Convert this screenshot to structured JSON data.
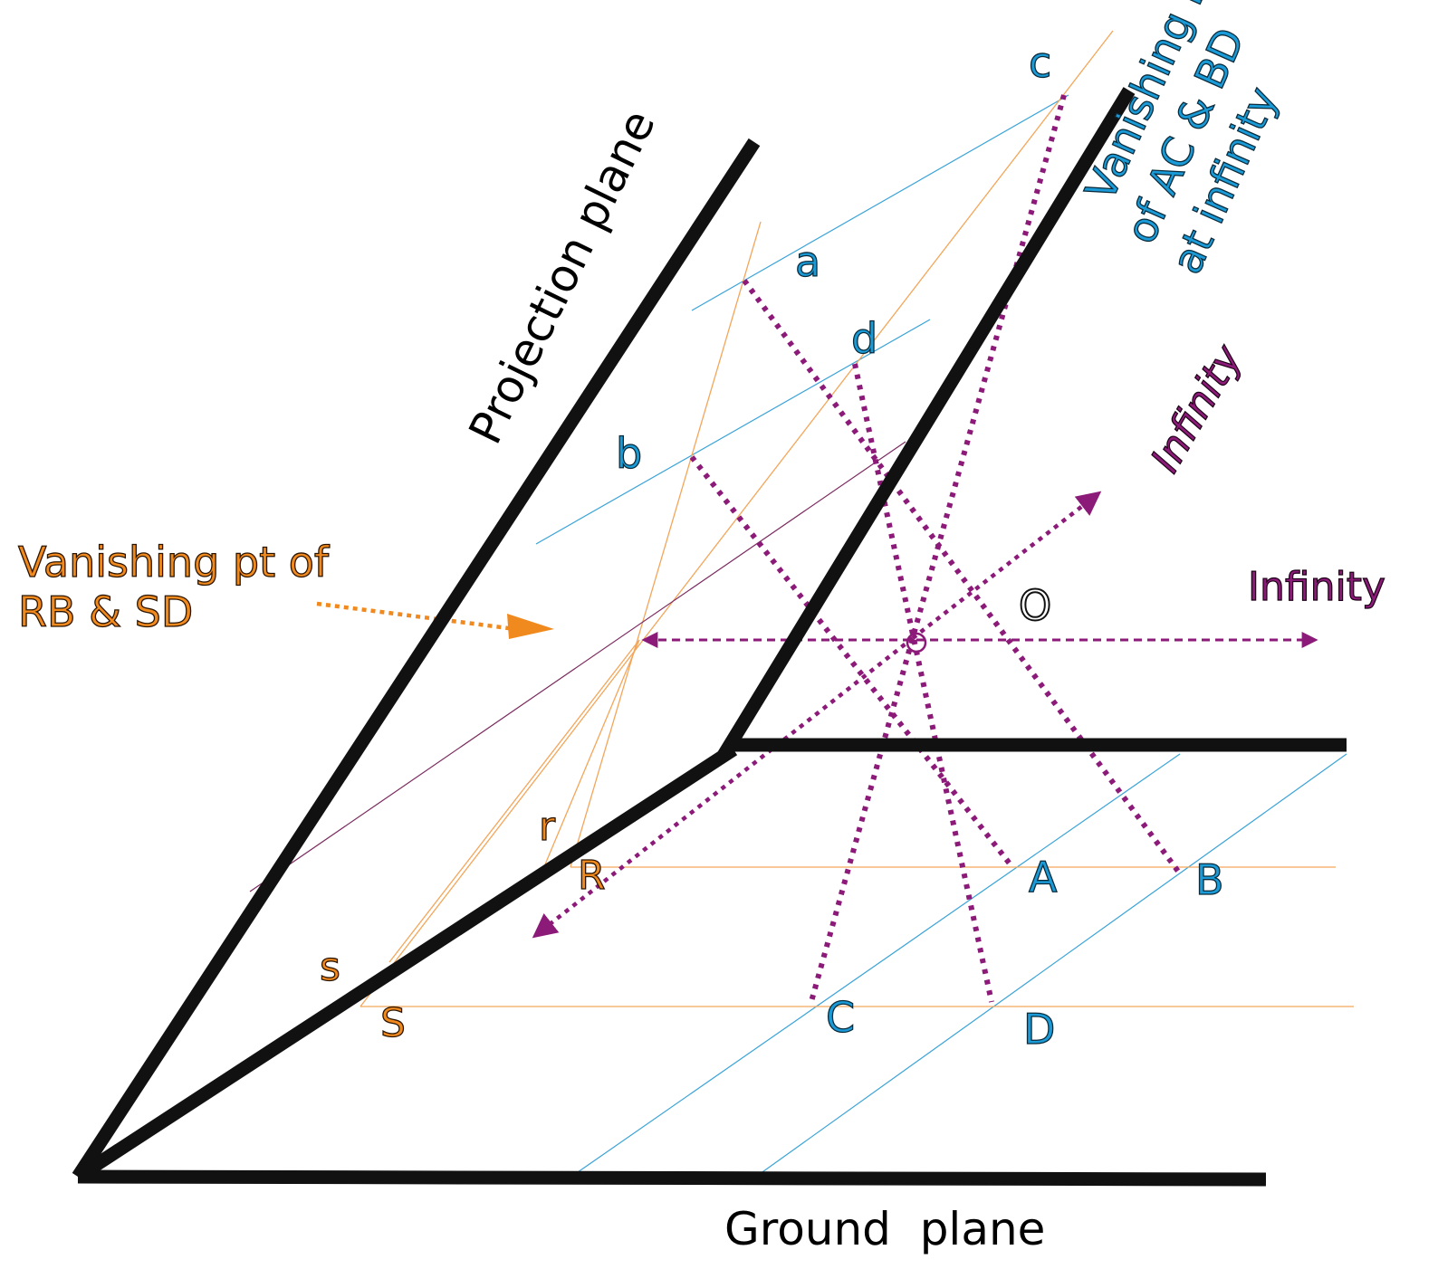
{
  "labels": {
    "projection_plane": "Projection plane",
    "ground_plane": "Ground  plane",
    "vp_ac_bd_line1": "Vanishing Pt",
    "vp_ac_bd_line2": "of AC & BD",
    "vp_ac_bd_line3": "at infinity",
    "vp_rb_sd_line1": "Vanishing pt of",
    "vp_rb_sd_line2": "RB & SD",
    "infinity_up": "Infinity",
    "infinity_right": "Infinity",
    "O": "O"
  },
  "points_image": {
    "a": "a",
    "b": "b",
    "c": "c",
    "d": "d",
    "r": "r",
    "s": "s"
  },
  "points_ground": {
    "A": "A",
    "B": "B",
    "C": "C",
    "D": "D",
    "R": "R",
    "S": "S"
  },
  "colors": {
    "frame": "#111111",
    "purple": "#8c1a78",
    "orange": "#f08a1e",
    "blue": "#1a9bd7",
    "thin_orange": "#f3a65a",
    "thin_blue": "#3aa3d8",
    "dark_magenta": "#7a2a5e"
  }
}
